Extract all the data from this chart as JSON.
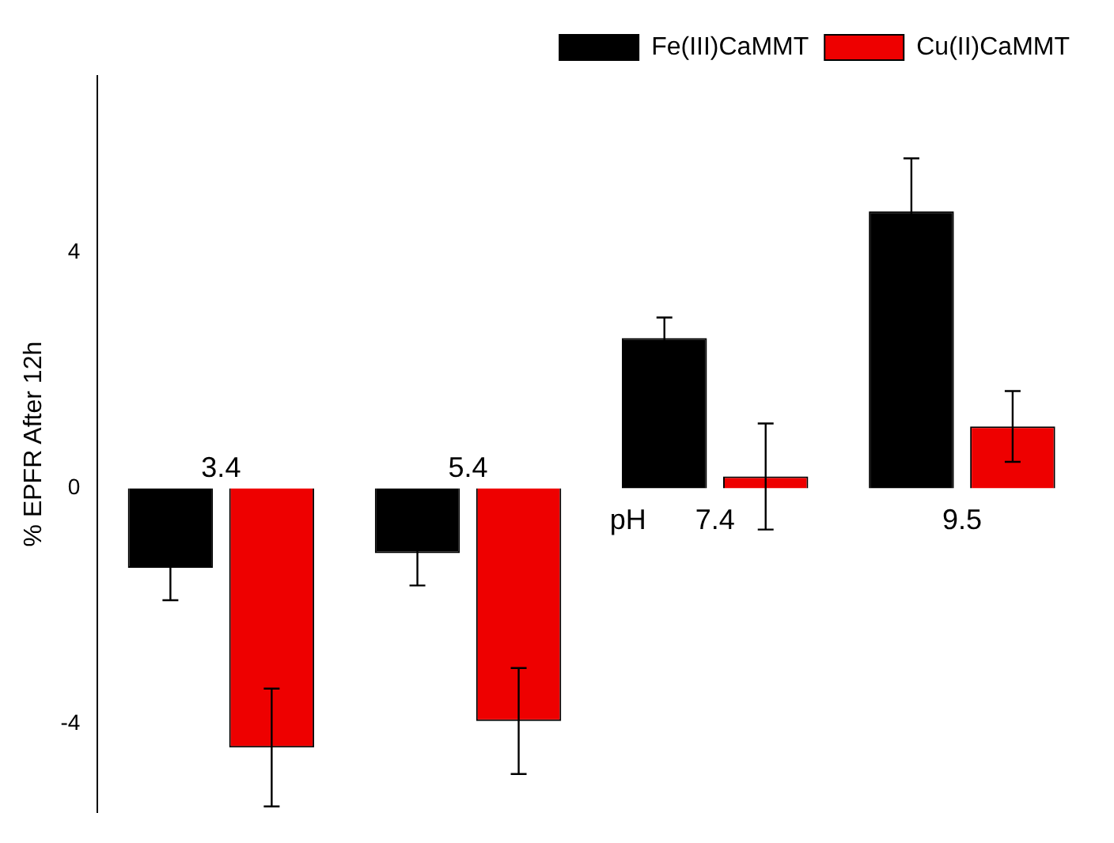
{
  "chart_data": {
    "type": "bar",
    "xlabel": "pH",
    "ylabel": "% EPFR After 12h",
    "categories": [
      "3.4",
      "5.4",
      "7.4",
      "9.5"
    ],
    "series": [
      {
        "name": "Fe(III)CaMMT",
        "color": "#000000",
        "values": [
          -1.35,
          -1.1,
          2.55,
          4.7
        ],
        "errors": [
          0.55,
          0.55,
          0.35,
          0.9
        ]
      },
      {
        "name": "Cu(II)CaMMT",
        "color": "#ee0000",
        "values": [
          -4.4,
          -3.95,
          0.2,
          1.05
        ],
        "errors": [
          1.0,
          0.9,
          0.9,
          0.6
        ]
      }
    ],
    "ylim": [
      -5.5,
      7
    ],
    "yticks": [
      -4,
      0,
      4
    ],
    "grid": false,
    "legend": "top right"
  }
}
